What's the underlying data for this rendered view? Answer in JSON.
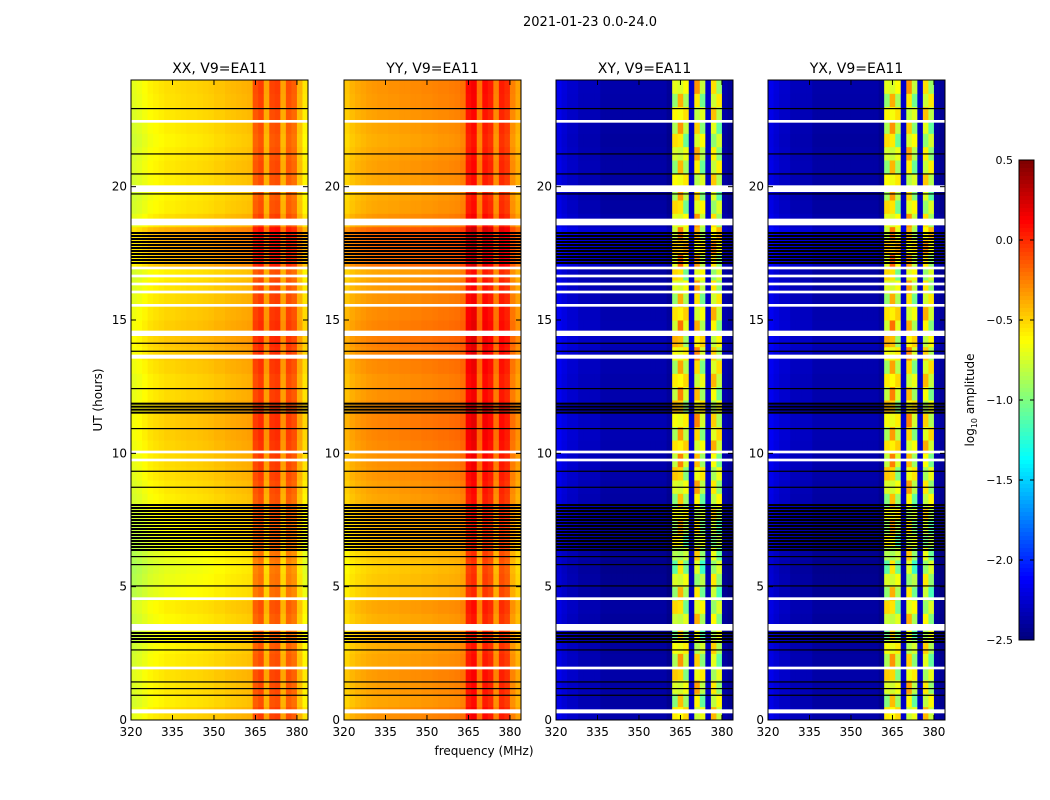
{
  "chart_data": {
    "type": "heatmap",
    "title": "2021-01-23 0.0-24.0",
    "xlabel": "frequency (MHz)",
    "ylabel": "UT (hours)",
    "xlim": [
      320,
      384
    ],
    "ylim": [
      0,
      24
    ],
    "xticks": [
      "320",
      "335",
      "350",
      "365",
      "380"
    ],
    "xtick_values": [
      320,
      335,
      350,
      365,
      380
    ],
    "yticks": [
      "0",
      "5",
      "10",
      "15",
      "20"
    ],
    "ytick_values": [
      0,
      5,
      10,
      15,
      20
    ],
    "colorbar": {
      "label_base": "log",
      "label_sub": "10",
      "label_rest": " amplitude",
      "range": [
        -2.5,
        0.5
      ],
      "ticks": [
        "0.5",
        "0.0",
        "−0.5",
        "−1.0",
        "−1.5",
        "−2.0",
        "−2.5"
      ],
      "tick_values": [
        0.5,
        0.0,
        -0.5,
        -1.0,
        -1.5,
        -2.0,
        -2.5
      ],
      "colormap": "jet"
    },
    "freq_bins_mhz": [
      320,
      322,
      324,
      326,
      328,
      330,
      332,
      334,
      336,
      338,
      340,
      342,
      344,
      346,
      348,
      350,
      352,
      354,
      356,
      358,
      360,
      362,
      364,
      366,
      368,
      370,
      372,
      374,
      376,
      378,
      380,
      382
    ],
    "time_step_hours": 0.5,
    "panels": [
      {
        "title": "XX, V9=EA11",
        "freq_profile": [
          -0.75,
          -0.72,
          -0.68,
          -0.64,
          -0.62,
          -0.6,
          -0.58,
          -0.58,
          -0.57,
          -0.56,
          -0.55,
          -0.55,
          -0.54,
          -0.53,
          -0.52,
          -0.5,
          -0.5,
          -0.48,
          -0.47,
          -0.46,
          -0.45,
          -0.44,
          -0.15,
          -0.1,
          -0.4,
          -0.12,
          -0.1,
          -0.4,
          -0.15,
          -0.2,
          -0.45,
          -0.6
        ]
      },
      {
        "title": "YY, V9=EA11",
        "freq_profile": [
          -0.5,
          -0.45,
          -0.42,
          -0.4,
          -0.38,
          -0.37,
          -0.36,
          -0.36,
          -0.35,
          -0.35,
          -0.34,
          -0.34,
          -0.33,
          -0.33,
          -0.32,
          -0.32,
          -0.31,
          -0.3,
          -0.3,
          -0.29,
          -0.28,
          -0.25,
          0.05,
          0.1,
          -0.25,
          0.05,
          0.0,
          -0.3,
          0.0,
          -0.05,
          -0.3,
          -0.4
        ]
      },
      {
        "title": "XY, V9=EA11",
        "freq_profile": [
          -2.2,
          -2.25,
          -2.3,
          -2.3,
          -2.35,
          -2.35,
          -2.35,
          -2.35,
          -2.4,
          -2.4,
          -2.4,
          -2.4,
          -2.4,
          -2.4,
          -2.4,
          -2.4,
          -2.4,
          -2.4,
          -2.4,
          -2.4,
          -2.45,
          -0.75,
          -0.55,
          -0.8,
          -2.3,
          -0.6,
          -0.85,
          -2.3,
          -0.7,
          -0.85,
          -2.4,
          -2.45
        ]
      },
      {
        "title": "YX, V9=EA11",
        "freq_profile": [
          -2.2,
          -2.25,
          -2.3,
          -2.3,
          -2.35,
          -2.35,
          -2.35,
          -2.35,
          -2.4,
          -2.4,
          -2.4,
          -2.4,
          -2.4,
          -2.4,
          -2.4,
          -2.4,
          -2.4,
          -2.4,
          -2.4,
          -2.4,
          -2.45,
          -0.75,
          -0.55,
          -0.8,
          -2.3,
          -0.6,
          -0.85,
          -2.3,
          -0.7,
          -0.85,
          -2.4,
          -2.45
        ]
      }
    ],
    "time_modulation": [
      0.05,
      0.0,
      0.02,
      0.04,
      0.0,
      -0.02,
      -0.05,
      -0.03,
      0.0,
      -0.08,
      -0.1,
      -0.12,
      -0.1,
      -0.08,
      -0.05,
      -0.02,
      0.0,
      0.02,
      0.05,
      0.06,
      0.08,
      0.1,
      0.1,
      0.08,
      0.06,
      0.05,
      0.08,
      0.1,
      0.12,
      0.1,
      0.08,
      0.05,
      0.03,
      0.0,
      0.15,
      0.18,
      0.2,
      0.05,
      0.0,
      -0.02,
      0.0,
      0.02,
      0.0,
      -0.02,
      0.0,
      0.02,
      0.04,
      0.05
    ],
    "flagged_white_hours": [
      [
        0.25,
        0.4
      ],
      [
        1.9,
        2.0
      ],
      [
        3.35,
        3.6
      ],
      [
        4.5,
        4.6
      ],
      [
        9.7,
        9.8
      ],
      [
        10.0,
        10.1
      ],
      [
        13.55,
        13.7
      ],
      [
        14.4,
        14.6
      ],
      [
        15.5,
        15.6
      ],
      [
        16.0,
        16.1
      ],
      [
        16.3,
        16.4
      ],
      [
        16.6,
        16.7
      ],
      [
        16.9,
        17.0
      ],
      [
        18.55,
        18.8
      ],
      [
        19.8,
        20.05
      ],
      [
        22.4,
        22.5
      ]
    ],
    "flagged_black_hours": [
      [
        0.9,
        0.95
      ],
      [
        1.15,
        1.2
      ],
      [
        1.4,
        1.45
      ],
      [
        2.6,
        2.65
      ],
      [
        2.95,
        3.3
      ],
      [
        5.0,
        5.05
      ],
      [
        5.8,
        5.85
      ],
      [
        6.1,
        6.15
      ],
      [
        6.4,
        8.1
      ],
      [
        8.7,
        8.75
      ],
      [
        9.3,
        9.35
      ],
      [
        10.9,
        10.95
      ],
      [
        11.5,
        11.9
      ],
      [
        12.4,
        12.45
      ],
      [
        13.8,
        13.85
      ],
      [
        14.1,
        14.15
      ],
      [
        17.15,
        18.3
      ],
      [
        19.7,
        19.75
      ],
      [
        20.4,
        20.5
      ],
      [
        21.2,
        21.25
      ],
      [
        22.9,
        22.95
      ]
    ]
  }
}
